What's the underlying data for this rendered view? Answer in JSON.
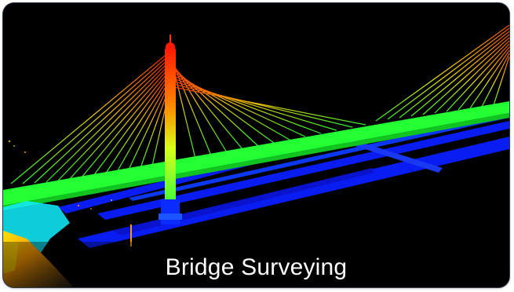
{
  "caption": "Bridge Surveying",
  "colors": {
    "background": "#000000",
    "high": "#ff1a00",
    "mid_high": "#ffcc00",
    "mid": "#33ff33",
    "low": "#0a1fff",
    "near_ground": "#00e6ff"
  }
}
